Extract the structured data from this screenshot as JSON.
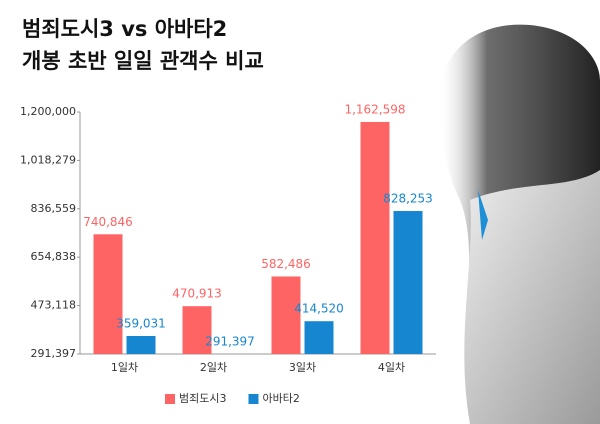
{
  "chart_data": {
    "type": "bar",
    "title": "범죄도시3 vs 아바타2",
    "subtitle": "개봉 초반 일일 관객수 비교",
    "categories": [
      "1일차",
      "2일차",
      "3일차",
      "4일차"
    ],
    "series": [
      {
        "name": "범죄도시3",
        "color": "#fe6464",
        "values": [
          740846,
          470913,
          582486,
          1162598
        ],
        "value_labels": [
          "740,846",
          "470,913",
          "582,486",
          "1,162,598"
        ]
      },
      {
        "name": "아바타2",
        "color": "#1786d1",
        "values": [
          359031,
          291397,
          414520,
          828253
        ],
        "value_labels": [
          "359,031",
          "291,397",
          "414,520",
          "828,253"
        ]
      }
    ],
    "ylim": [
      291397,
      1200000
    ],
    "yticks": [
      {
        "value": 291397,
        "label": "291,397"
      },
      {
        "value": 473118,
        "label": "473,118"
      },
      {
        "value": 654838,
        "label": "654,838"
      },
      {
        "value": 836559,
        "label": "836,559"
      },
      {
        "value": 1018279,
        "label": "1,018,279"
      },
      {
        "value": 1200000,
        "label": "1,200,000"
      }
    ],
    "grid": false,
    "legend": "bottom"
  }
}
